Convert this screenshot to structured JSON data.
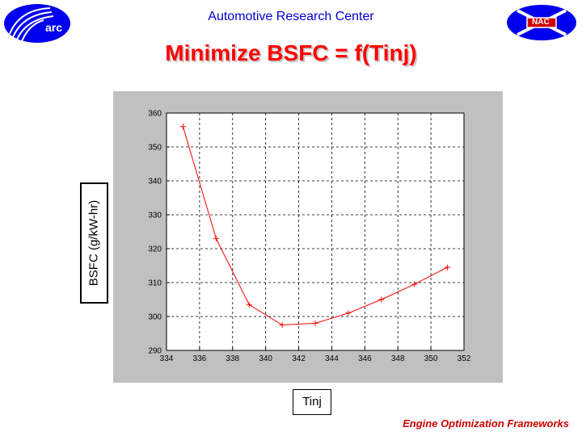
{
  "header": {
    "org_title": "Automotive Research Center",
    "slide_title": "Minimize BSFC = f(Tinj)",
    "left_logo": {
      "icon": "arc-logo-icon",
      "text": "arc"
    },
    "right_logo": {
      "icon": "nac-logo-icon",
      "text": "NAC"
    }
  },
  "footer": {
    "text": "Engine Optimization Frameworks"
  },
  "colors": {
    "title": "#ff0000",
    "header": "#0000cc",
    "series": "#ff0000",
    "logo_blue": "#0000ee",
    "footer": "#cc0000"
  },
  "chart_data": {
    "type": "line",
    "title": "",
    "xlabel": "Tinj",
    "ylabel": "BSFC (g/kW-hr)",
    "xlim": [
      334,
      352
    ],
    "ylim": [
      290,
      360
    ],
    "xticks": [
      334,
      336,
      338,
      340,
      342,
      344,
      346,
      348,
      350,
      352
    ],
    "yticks": [
      290,
      300,
      310,
      320,
      330,
      340,
      350,
      360
    ],
    "grid": true,
    "marker": "+",
    "series": [
      {
        "x": [
          335,
          337,
          339,
          341,
          343,
          345,
          347,
          349,
          351
        ],
        "y": [
          356,
          323,
          303.5,
          297.5,
          298,
          301,
          305,
          309.5,
          314.5
        ]
      }
    ]
  }
}
